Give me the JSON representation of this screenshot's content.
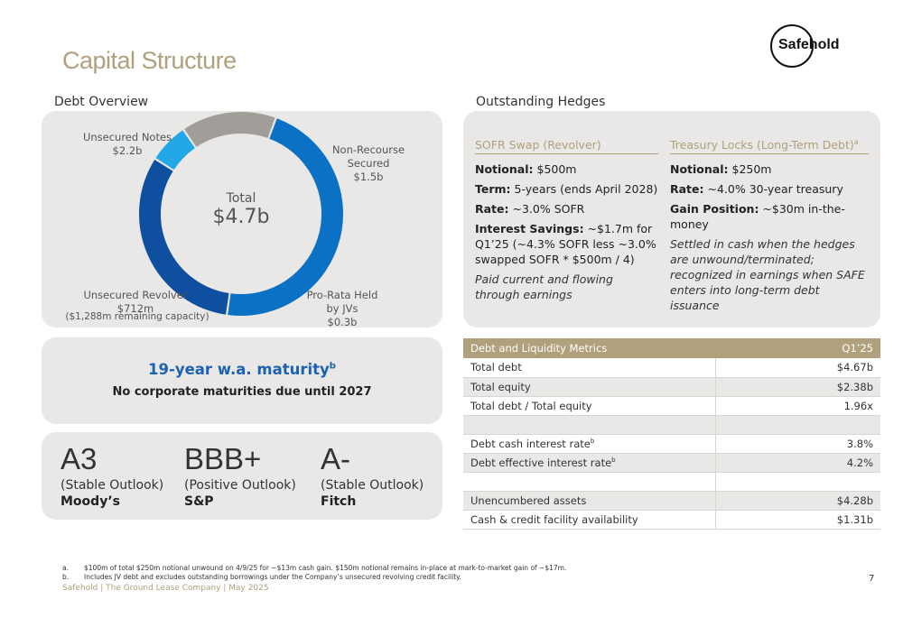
{
  "header": {
    "title": "Capital Structure",
    "logo_text": "Safehold"
  },
  "debt_overview": {
    "label": "Debt Overview",
    "total_label": "Total",
    "total_value": "$4.7b",
    "segments": [
      {
        "name": "Unsecured Notes",
        "value_label": "$2.2b",
        "value": 2.2,
        "color": "#0a71c4"
      },
      {
        "name": "Non-Recourse Secured",
        "value_label": "$1.5b",
        "value": 1.5,
        "color": "#0e4fa0"
      },
      {
        "name": "Pro-Rata Held by JVs",
        "value_label": "$0.3b",
        "value": 0.3,
        "color": "#22a8e6"
      },
      {
        "name": "Unsecured Revolver",
        "value_label": "$712m",
        "value": 0.712,
        "color": "#a19d99"
      }
    ],
    "labels": {
      "unsecured_notes": "Unsecured Notes",
      "unsecured_notes_val": "$2.2b",
      "nonrecourse_1": "Non-Recourse",
      "nonrecourse_2": "Secured",
      "nonrecourse_val": "$1.5b",
      "prorata_1": "Pro-Rata Held",
      "prorata_2": "by JVs",
      "prorata_val": "$0.3b",
      "revolver": "Unsecured Revolver",
      "revolver_val": "$712m",
      "revolver_note": "($1,288m remaining capacity)"
    }
  },
  "maturity": {
    "title": "19-year w.a. maturity",
    "title_sup": "b",
    "subtitle": "No corporate maturities due until 2027"
  },
  "ratings": [
    {
      "grade": "A3",
      "outlook": "(Stable Outlook)",
      "agency": "Moody’s"
    },
    {
      "grade": "BBB+",
      "outlook": "(Positive Outlook)",
      "agency": "S&P"
    },
    {
      "grade": "A-",
      "outlook": "(Stable Outlook)",
      "agency": "Fitch"
    }
  ],
  "hedges": {
    "label": "Outstanding Hedges",
    "sofr": {
      "heading": "SOFR Swap (Revolver)",
      "notional_k": "Notional:",
      "notional_v": " $500m",
      "term_k": "Term:",
      "term_v": " 5-years (ends April 2028)",
      "rate_k": "Rate:",
      "rate_v": " ~3.0% SOFR",
      "savings_k": "Interest Savings:",
      "savings_v": " ~$1.7m for Q1’25 (~4.3% SOFR less ~3.0% swapped SOFR * $500m / 4)",
      "note": "Paid current and flowing through earnings"
    },
    "treasury": {
      "heading": "Treasury Locks (Long-Term Debt)",
      "heading_sup": "a",
      "notional_k": "Notional:",
      "notional_v": " $250m",
      "rate_k": "Rate:",
      "rate_v": " ~4.0% 30-year treasury",
      "gain_k": "Gain Position:",
      "gain_v": " ~$30m in-the-money",
      "note": "Settled in cash when the hedges are unwound/terminated; recognized in earnings when SAFE enters into long-term debt issuance"
    }
  },
  "metrics_table": {
    "col1": "Debt and Liquidity Metrics",
    "col2": "Q1’25",
    "rows": [
      {
        "label": "Total debt",
        "sup": "",
        "value": "$4.67b",
        "shade": false
      },
      {
        "label": "Total equity",
        "sup": "",
        "value": "$2.38b",
        "shade": true
      },
      {
        "label": "Total debt / Total equity",
        "sup": "",
        "value": "1.96x",
        "shade": false
      },
      {
        "label": "",
        "sup": "",
        "value": "",
        "shade": true
      },
      {
        "label": "Debt cash interest rate",
        "sup": "b",
        "value": "3.8%",
        "shade": false
      },
      {
        "label": "Debt effective interest rate",
        "sup": "b",
        "value": "4.2%",
        "shade": true
      },
      {
        "label": "",
        "sup": "",
        "value": "",
        "shade": false
      },
      {
        "label": "Unencumbered assets",
        "sup": "",
        "value": "$4.28b",
        "shade": true
      },
      {
        "label": "Cash & credit facility availability",
        "sup": "",
        "value": "$1.31b",
        "shade": false
      }
    ]
  },
  "footnotes": [
    {
      "marker": "a.",
      "text": "$100m of total $250m notional unwound on 4/9/25 for ~$13m cash gain. $150m notional remains in-place at mark-to-market gain of ~$17m."
    },
    {
      "marker": "b.",
      "text": "Includes JV debt and excludes outstanding borrowings under the Company’s unsecured revolving credit facility."
    }
  ],
  "footer": {
    "text": "Safehold | The Ground Lease Company | May 2025",
    "page": "7"
  }
}
